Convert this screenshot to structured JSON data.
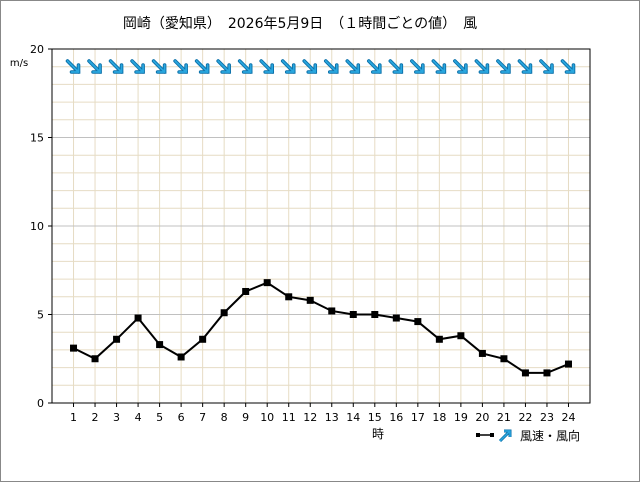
{
  "chart_data": {
    "type": "line",
    "title": "岡崎（愛知県）　2026年5月9日　（１時間ごとの値）　風",
    "ylabel": "m/s",
    "xlabel": "時",
    "legend_label": "風速・風向",
    "ylim": [
      0,
      20
    ],
    "yticks": [
      0,
      5,
      10,
      15,
      20
    ],
    "x": [
      1,
      2,
      3,
      4,
      5,
      6,
      7,
      8,
      9,
      10,
      11,
      12,
      13,
      14,
      15,
      16,
      17,
      18,
      19,
      20,
      21,
      22,
      23,
      24
    ],
    "series": [
      {
        "values": [
          3.1,
          2.5,
          3.6,
          4.8,
          3.3,
          2.6,
          3.6,
          5.1,
          6.3,
          6.8,
          6.0,
          5.8,
          5.2,
          5.0,
          5.0,
          4.8,
          4.6,
          3.6,
          3.8,
          2.8,
          2.5,
          1.7,
          1.7,
          2.2
        ]
      }
    ],
    "wind_direction": [
      "北西",
      "北西",
      "北西",
      "北西",
      "北西",
      "北西",
      "北西",
      "北西",
      "北西",
      "北西",
      "北西",
      "北西",
      "北西",
      "北西",
      "北西",
      "北西",
      "北西",
      "北西",
      "北西",
      "北西",
      "北西",
      "北西",
      "北西",
      "北西"
    ],
    "grid": true,
    "colors": {
      "line": "#000000",
      "arrow": "#2aa7df",
      "arrow_stroke": "#0a6fa8",
      "grid": "#e6dcc4",
      "axis": "#000000"
    }
  }
}
